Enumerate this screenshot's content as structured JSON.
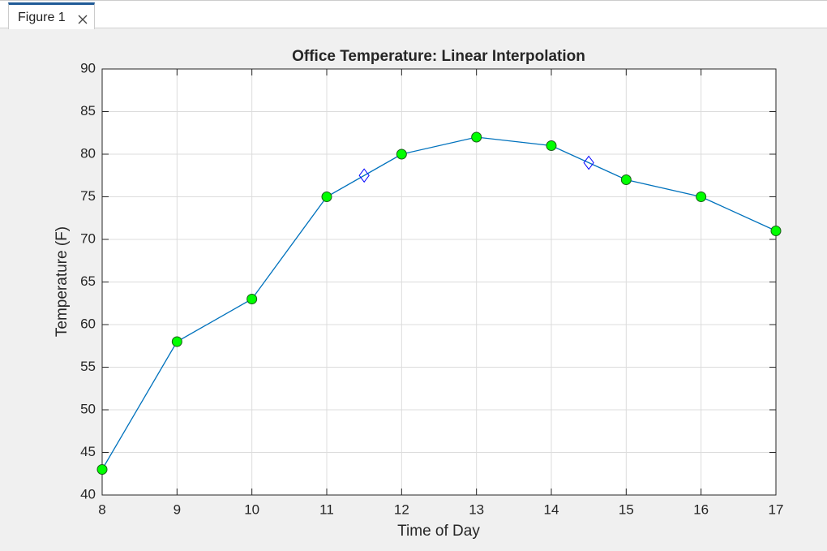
{
  "window": {
    "tab": "Figure 1"
  },
  "chart_data": {
    "type": "line",
    "title": "Office Temperature: Linear Interpolation",
    "xlabel": "Time of Day",
    "ylabel": "Temperature (F)",
    "xlim": [
      8,
      17
    ],
    "xticks": [
      8,
      9,
      10,
      11,
      12,
      13,
      14,
      15,
      16,
      17
    ],
    "ylim": [
      40,
      90
    ],
    "yticks": [
      40,
      45,
      50,
      55,
      60,
      65,
      70,
      75,
      80,
      85,
      90
    ],
    "grid": true,
    "series": [
      {
        "x": [
          8,
          9,
          10,
          11,
          12,
          13,
          14,
          15,
          16,
          17
        ],
        "values": [
          43,
          58,
          63,
          75,
          80,
          82,
          81,
          77,
          75,
          71
        ],
        "color": "#0072bd",
        "line": true,
        "marker": "o",
        "marker_face": "#00ff00",
        "marker_edge": "#1a5c1a"
      },
      {
        "x": [
          11.5,
          14.5
        ],
        "values": [
          77.5,
          79
        ],
        "color": "#0000ff",
        "line": false,
        "marker": "d",
        "marker_face": "none",
        "marker_edge": "#0000ff"
      }
    ]
  }
}
